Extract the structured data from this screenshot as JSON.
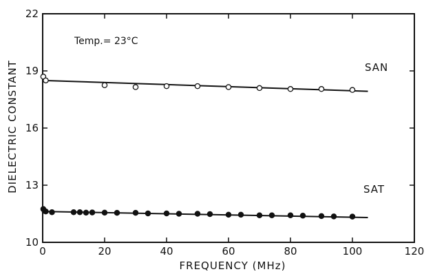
{
  "chart_data": {
    "type": "scatter",
    "title": "",
    "xlabel": "FREQUENCY (MHz)",
    "ylabel": "DIELECTRIC CONSTANT",
    "xlim": [
      0,
      120
    ],
    "ylim": [
      10,
      22
    ],
    "x_ticks": [
      0,
      20,
      40,
      60,
      80,
      100,
      120
    ],
    "y_ticks": [
      10,
      13,
      16,
      19,
      22
    ],
    "x_tick_labels": [
      "0",
      "20",
      "40",
      "60",
      "80",
      "100",
      "120"
    ],
    "y_tick_labels": [
      "10",
      "13",
      "16",
      "19",
      "22"
    ],
    "grid": false,
    "annotation": "Temp.= 23°C",
    "series": [
      {
        "name": "SAN",
        "marker": "open-circle",
        "x": [
          0.2,
          1,
          20,
          30,
          40,
          50,
          60,
          70,
          80,
          90,
          100
        ],
        "y": [
          18.7,
          18.5,
          18.25,
          18.15,
          18.2,
          18.2,
          18.15,
          18.1,
          18.05,
          18.05,
          18.0
        ],
        "fit": {
          "x": [
            0,
            105
          ],
          "y": [
            18.5,
            17.93
          ]
        }
      },
      {
        "name": "SAT",
        "marker": "filled-circle",
        "x": [
          0.2,
          0.6,
          1,
          3,
          10,
          12,
          14,
          16,
          20,
          24,
          30,
          34,
          40,
          44,
          50,
          54,
          60,
          64,
          70,
          74,
          80,
          84,
          90,
          94,
          100
        ],
        "y": [
          11.75,
          11.65,
          11.62,
          11.58,
          11.58,
          11.58,
          11.56,
          11.57,
          11.56,
          11.55,
          11.55,
          11.52,
          11.52,
          11.5,
          11.5,
          11.48,
          11.45,
          11.45,
          11.42,
          11.42,
          11.42,
          11.4,
          11.38,
          11.36,
          11.35
        ],
        "fit": {
          "x": [
            0,
            105
          ],
          "y": [
            11.62,
            11.3
          ]
        }
      }
    ]
  }
}
